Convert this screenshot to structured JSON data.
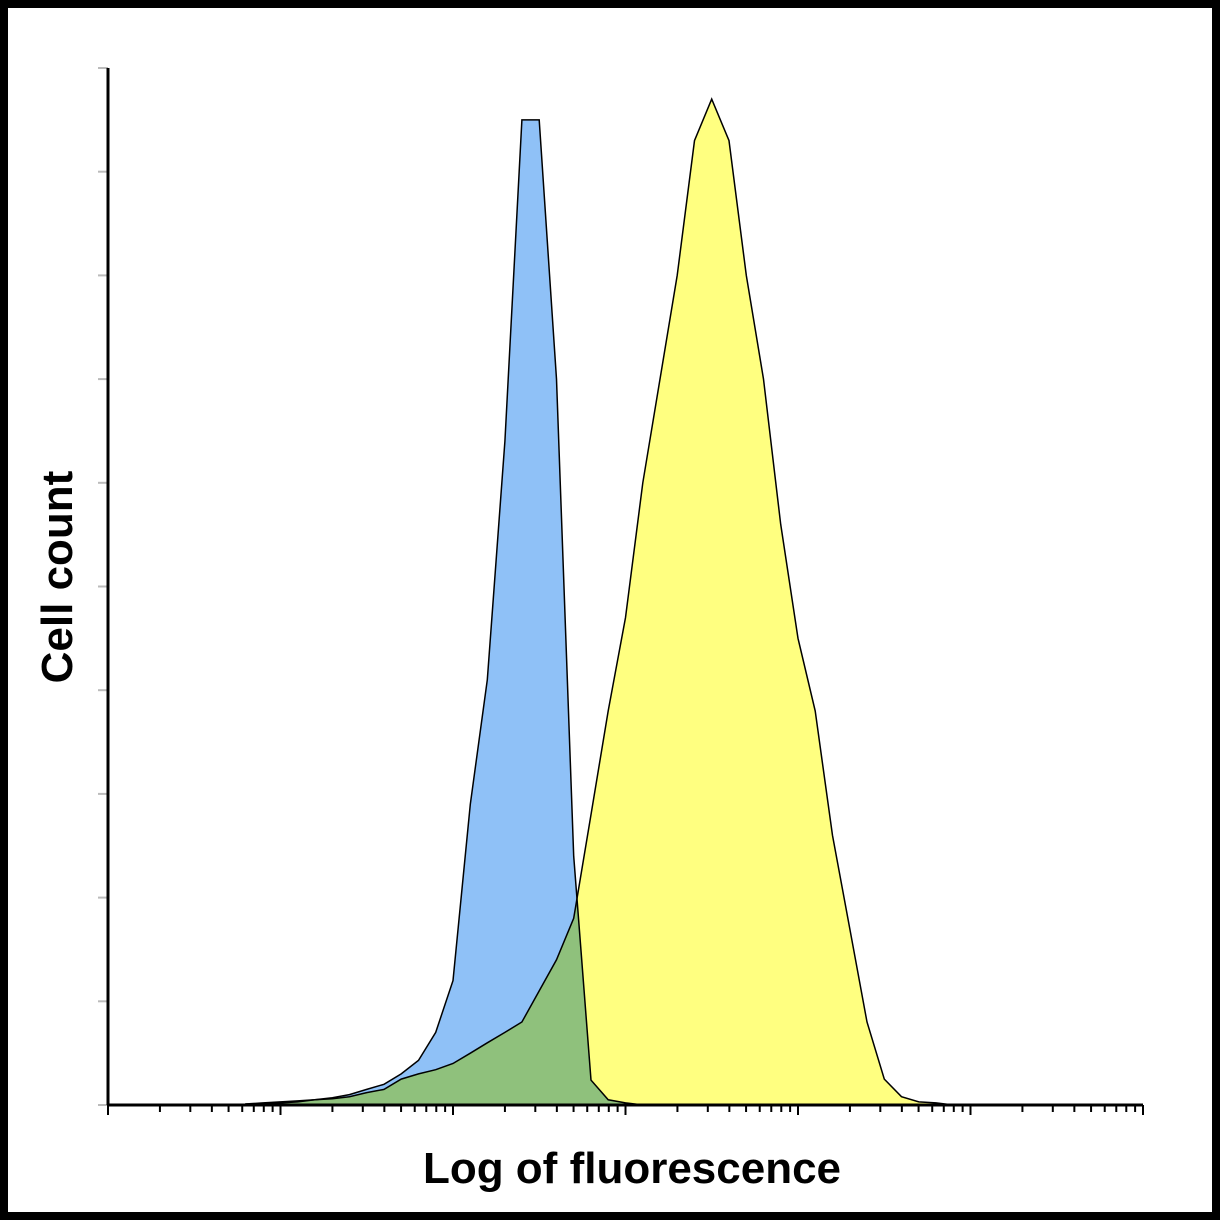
{
  "chart_data": {
    "type": "histogram-overlay",
    "xlabel": "Log of fluorescence",
    "ylabel": "Cell count",
    "xlog": true,
    "xlim": [
      1,
      1000000
    ],
    "ylim": [
      0,
      100
    ],
    "xticks": [
      1,
      2,
      3,
      4,
      5,
      6,
      7,
      8,
      9,
      10,
      20,
      30,
      40,
      50,
      60,
      70,
      80,
      90,
      100,
      200,
      300,
      400,
      500,
      600,
      700,
      800,
      900,
      1000,
      2000,
      3000,
      4000,
      5000,
      6000,
      7000,
      8000,
      9000,
      10000,
      20000,
      30000,
      40000,
      50000,
      60000,
      70000,
      80000,
      90000,
      100000,
      200000,
      300000,
      400000,
      500000,
      600000,
      700000,
      800000,
      900000,
      1000000
    ],
    "yticks": [
      0,
      10,
      20,
      30,
      40,
      50,
      60,
      70,
      80,
      90,
      100
    ],
    "x": [
      6.31,
      7.94,
      10,
      12.6,
      15.8,
      20.0,
      25.1,
      31.6,
      39.8,
      50.1,
      63.1,
      79.4,
      100,
      126,
      158,
      200,
      251,
      316,
      398,
      501,
      631,
      794,
      1000,
      1259,
      1585,
      1995,
      2512,
      3162,
      3981,
      5012,
      6310,
      7943,
      10000,
      12589,
      15849,
      19953,
      25119,
      31623,
      39811,
      50119,
      63096,
      79433,
      100000
    ],
    "series": [
      {
        "color": "#8fc1f7",
        "values": [
          0.1,
          0.2,
          0.3,
          0.4,
          0.5,
          0.7,
          1,
          1.5,
          2,
          3,
          4.3,
          7,
          12,
          29,
          41,
          64,
          95,
          95,
          70,
          24,
          2.4,
          0.5,
          0.2,
          0,
          0,
          0,
          0,
          0,
          0,
          0,
          0,
          0,
          0,
          0,
          0,
          0,
          0,
          0,
          0,
          0,
          0,
          0,
          0
        ]
      },
      {
        "color": "#ffff80",
        "values": [
          0.1,
          0.1,
          0.2,
          0.3,
          0.5,
          0.6,
          0.8,
          1.2,
          1.5,
          2.5,
          3,
          3.4,
          4,
          5,
          6,
          7,
          8,
          11,
          14,
          18,
          28,
          38,
          47,
          60,
          70,
          80,
          93,
          97,
          93,
          80,
          70,
          56,
          45,
          38,
          26,
          17,
          8,
          2.5,
          0.8,
          0.3,
          0.2,
          0,
          0
        ]
      }
    ]
  }
}
